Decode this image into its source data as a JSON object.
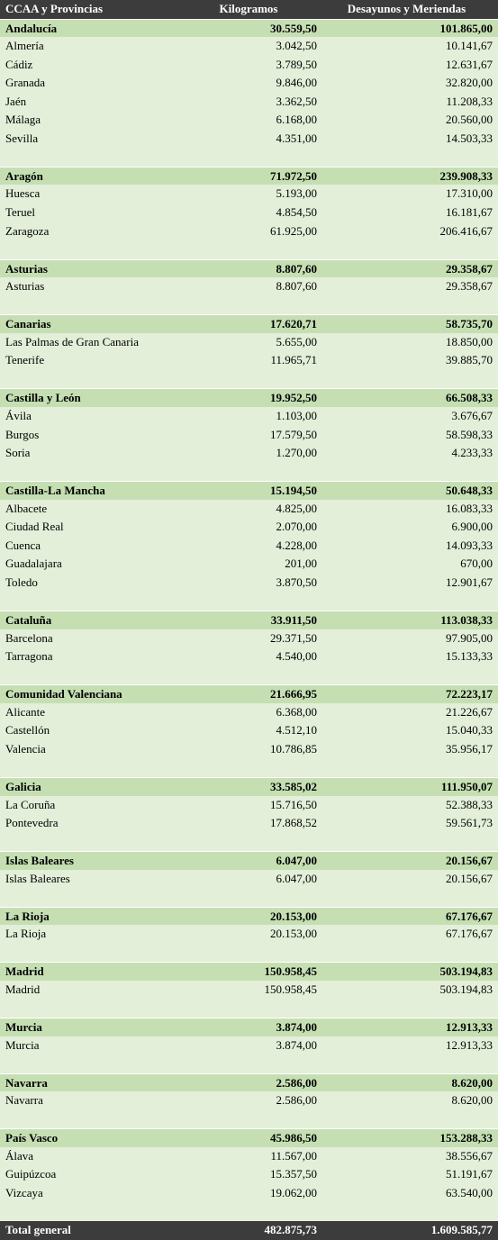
{
  "table": {
    "header": [
      "CCAA y Provincias",
      "Kilogramos",
      "Desayunos y Meriendas"
    ],
    "groups": [
      {
        "name": "Andalucía",
        "kg": "30.559,50",
        "dm": "101.865,00",
        "rows": [
          [
            "Almería",
            "3.042,50",
            "10.141,67"
          ],
          [
            "Cádiz",
            "3.789,50",
            "12.631,67"
          ],
          [
            "Granada",
            "9.846,00",
            "32.820,00"
          ],
          [
            "Jaén",
            "3.362,50",
            "11.208,33"
          ],
          [
            "Málaga",
            "6.168,00",
            "20.560,00"
          ],
          [
            "Sevilla",
            "4.351,00",
            "14.503,33"
          ]
        ]
      },
      {
        "name": "Aragón",
        "kg": "71.972,50",
        "dm": "239.908,33",
        "rows": [
          [
            "Huesca",
            "5.193,00",
            "17.310,00"
          ],
          [
            "Teruel",
            "4.854,50",
            "16.181,67"
          ],
          [
            "Zaragoza",
            "61.925,00",
            "206.416,67"
          ]
        ]
      },
      {
        "name": "Asturias",
        "kg": "8.807,60",
        "dm": "29.358,67",
        "rows": [
          [
            "Asturias",
            "8.807,60",
            "29.358,67"
          ]
        ]
      },
      {
        "name": "Canarias",
        "kg": "17.620,71",
        "dm": "58.735,70",
        "rows": [
          [
            "Las Palmas de Gran Canaria",
            "5.655,00",
            "18.850,00"
          ],
          [
            "Tenerife",
            "11.965,71",
            "39.885,70"
          ]
        ]
      },
      {
        "name": "Castilla y León",
        "kg": "19.952,50",
        "dm": "66.508,33",
        "rows": [
          [
            "Ávila",
            "1.103,00",
            "3.676,67"
          ],
          [
            "Burgos",
            "17.579,50",
            "58.598,33"
          ],
          [
            "Soria",
            "1.270,00",
            "4.233,33"
          ]
        ]
      },
      {
        "name": "Castilla-La Mancha",
        "kg": "15.194,50",
        "dm": "50.648,33",
        "rows": [
          [
            "Albacete",
            "4.825,00",
            "16.083,33"
          ],
          [
            "Ciudad Real",
            "2.070,00",
            "6.900,00"
          ],
          [
            "Cuenca",
            "4.228,00",
            "14.093,33"
          ],
          [
            "Guadalajara",
            "201,00",
            "670,00"
          ],
          [
            "Toledo",
            "3.870,50",
            "12.901,67"
          ]
        ]
      },
      {
        "name": "Cataluña",
        "kg": "33.911,50",
        "dm": "113.038,33",
        "rows": [
          [
            "Barcelona",
            "29.371,50",
            "97.905,00"
          ],
          [
            "Tarragona",
            "4.540,00",
            "15.133,33"
          ]
        ]
      },
      {
        "name": "Comunidad Valenciana",
        "kg": "21.666,95",
        "dm": "72.223,17",
        "rows": [
          [
            "Alicante",
            "6.368,00",
            "21.226,67"
          ],
          [
            "Castellón",
            "4.512,10",
            "15.040,33"
          ],
          [
            "Valencia",
            "10.786,85",
            "35.956,17"
          ]
        ]
      },
      {
        "name": "Galicia",
        "kg": "33.585,02",
        "dm": "111.950,07",
        "rows": [
          [
            "La Coruña",
            "15.716,50",
            "52.388,33"
          ],
          [
            "Pontevedra",
            "17.868,52",
            "59.561,73"
          ]
        ]
      },
      {
        "name": "Islas Baleares",
        "kg": "6.047,00",
        "dm": "20.156,67",
        "rows": [
          [
            "Islas Baleares",
            "6.047,00",
            "20.156,67"
          ]
        ]
      },
      {
        "name": "La Rioja",
        "kg": "20.153,00",
        "dm": "67.176,67",
        "rows": [
          [
            "La Rioja",
            "20.153,00",
            "67.176,67"
          ]
        ]
      },
      {
        "name": "Madrid",
        "kg": "150.958,45",
        "dm": "503.194,83",
        "rows": [
          [
            "Madrid",
            "150.958,45",
            "503.194,83"
          ]
        ]
      },
      {
        "name": "Murcia",
        "kg": "3.874,00",
        "dm": "12.913,33",
        "rows": [
          [
            "Murcia",
            "3.874,00",
            "12.913,33"
          ]
        ]
      },
      {
        "name": "Navarra",
        "kg": "2.586,00",
        "dm": "8.620,00",
        "rows": [
          [
            "Navarra",
            "2.586,00",
            "8.620,00"
          ]
        ]
      },
      {
        "name": "País Vasco",
        "kg": "45.986,50",
        "dm": "153.288,33",
        "rows": [
          [
            "Álava",
            "11.567,00",
            "38.556,67"
          ],
          [
            "Guipúzcoa",
            "15.357,50",
            "51.191,67"
          ],
          [
            "Vizcaya",
            "19.062,00",
            "63.540,00"
          ]
        ]
      }
    ],
    "total": [
      "Total general",
      "482.875,73",
      "1.609.585,77"
    ]
  }
}
